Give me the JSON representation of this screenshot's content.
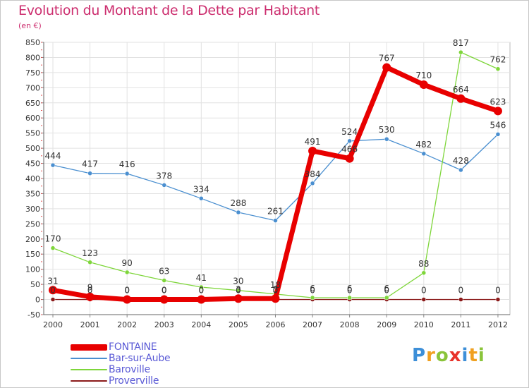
{
  "title": "Evolution du Montant de la Dette par Habitant",
  "subtitle": "(en €)",
  "logo": {
    "text": "Proxiti",
    "letters": [
      {
        "char": "P",
        "color": "#3d8fd8"
      },
      {
        "char": "r",
        "color": "#f0a020"
      },
      {
        "char": "o",
        "color": "#8ac43a"
      },
      {
        "char": "x",
        "color": "#e8322a"
      },
      {
        "char": "i",
        "color": "#3d8fd8"
      },
      {
        "char": "t",
        "color": "#f0a020"
      },
      {
        "char": "i",
        "color": "#8ac43a"
      }
    ]
  },
  "chart_data": {
    "type": "line",
    "title": "Evolution du Montant de la Dette par Habitant",
    "subtitle": "(en €)",
    "x": [
      "2000",
      "2001",
      "2002",
      "2003",
      "2004",
      "2005",
      "2006",
      "2007",
      "2008",
      "2009",
      "2010",
      "2011",
      "2012"
    ],
    "ylim": [
      -50,
      850
    ],
    "yticks": [
      -50,
      0,
      50,
      100,
      150,
      200,
      250,
      300,
      350,
      400,
      450,
      500,
      550,
      600,
      650,
      700,
      750,
      800,
      850
    ],
    "grid": true,
    "legend_position": "bottom-left",
    "series": [
      {
        "name": "FONTAINE",
        "color": "#e80000",
        "values": [
          31,
          9,
          0,
          0,
          0,
          3,
          3,
          491,
          466,
          767,
          710,
          664,
          623
        ],
        "labels": [
          "31",
          "9",
          "0",
          "0",
          "0",
          "3",
          "3",
          "491",
          "466",
          "767",
          "710",
          "664",
          "623"
        ]
      },
      {
        "name": "Bar-sur-Aube",
        "color": "#4a8fd0",
        "values": [
          444,
          417,
          416,
          378,
          334,
          288,
          261,
          384,
          524,
          530,
          482,
          428,
          546
        ],
        "labels": [
          "444",
          "417",
          "416",
          "378",
          "334",
          "288",
          "261",
          "384",
          "524",
          "530",
          "482",
          "428",
          "546"
        ]
      },
      {
        "name": "Baroville",
        "color": "#7ed63a",
        "values": [
          170,
          123,
          90,
          63,
          41,
          30,
          18,
          6,
          6,
          6,
          88,
          817,
          762
        ],
        "labels": [
          "170",
          "123",
          "90",
          "63",
          "41",
          "30",
          "18",
          "6",
          "6",
          "6",
          "88",
          "817",
          "762"
        ]
      },
      {
        "name": "Proverville",
        "color": "#8b1a1a",
        "values": [
          0,
          0,
          0,
          0,
          0,
          0,
          0,
          0,
          0,
          0,
          0,
          0,
          0
        ],
        "labels": [
          "0",
          "0",
          "0",
          "0",
          "0",
          "0",
          "0",
          "0",
          "0",
          "0",
          "0",
          "0",
          "0"
        ]
      }
    ]
  }
}
